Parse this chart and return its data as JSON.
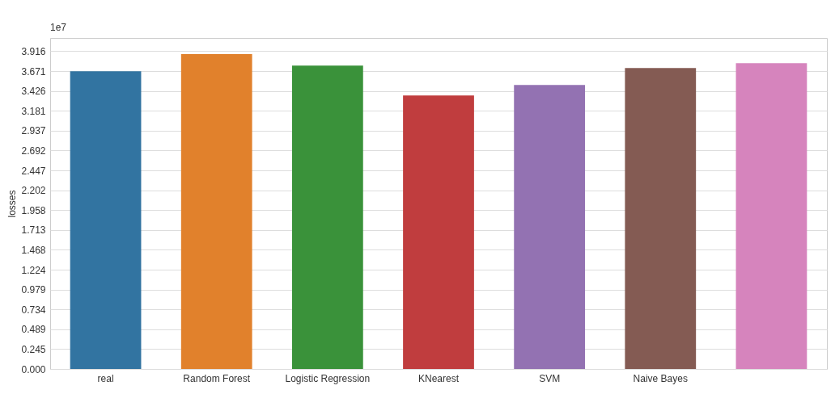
{
  "chart_data": {
    "type": "bar",
    "ylabel": "losses",
    "categories": [
      "real",
      "Random Forest",
      "Logistic Regression",
      "KNearest",
      "SVM",
      "Naive Bayes",
      null
    ],
    "values": [
      3.67,
      3.88,
      3.74,
      3.37,
      3.5,
      3.71,
      3.77
    ],
    "colors": [
      "#3274a1",
      "#e1812c",
      "#3a923a",
      "#c03d3e",
      "#9372b2",
      "#845b53",
      "#d684bd"
    ],
    "ylim": [
      0,
      4.08
    ],
    "yticks": [
      {
        "value": 0,
        "label": "0.000"
      },
      0.245,
      0.489,
      0.734,
      0.979,
      1.224,
      1.468,
      1.713,
      1.958,
      2.202,
      2.447,
      2.692,
      2.937,
      3.181,
      3.426,
      3.671,
      3.916
    ],
    "grid": "y",
    "annotations": [
      "1e7"
    ]
  }
}
